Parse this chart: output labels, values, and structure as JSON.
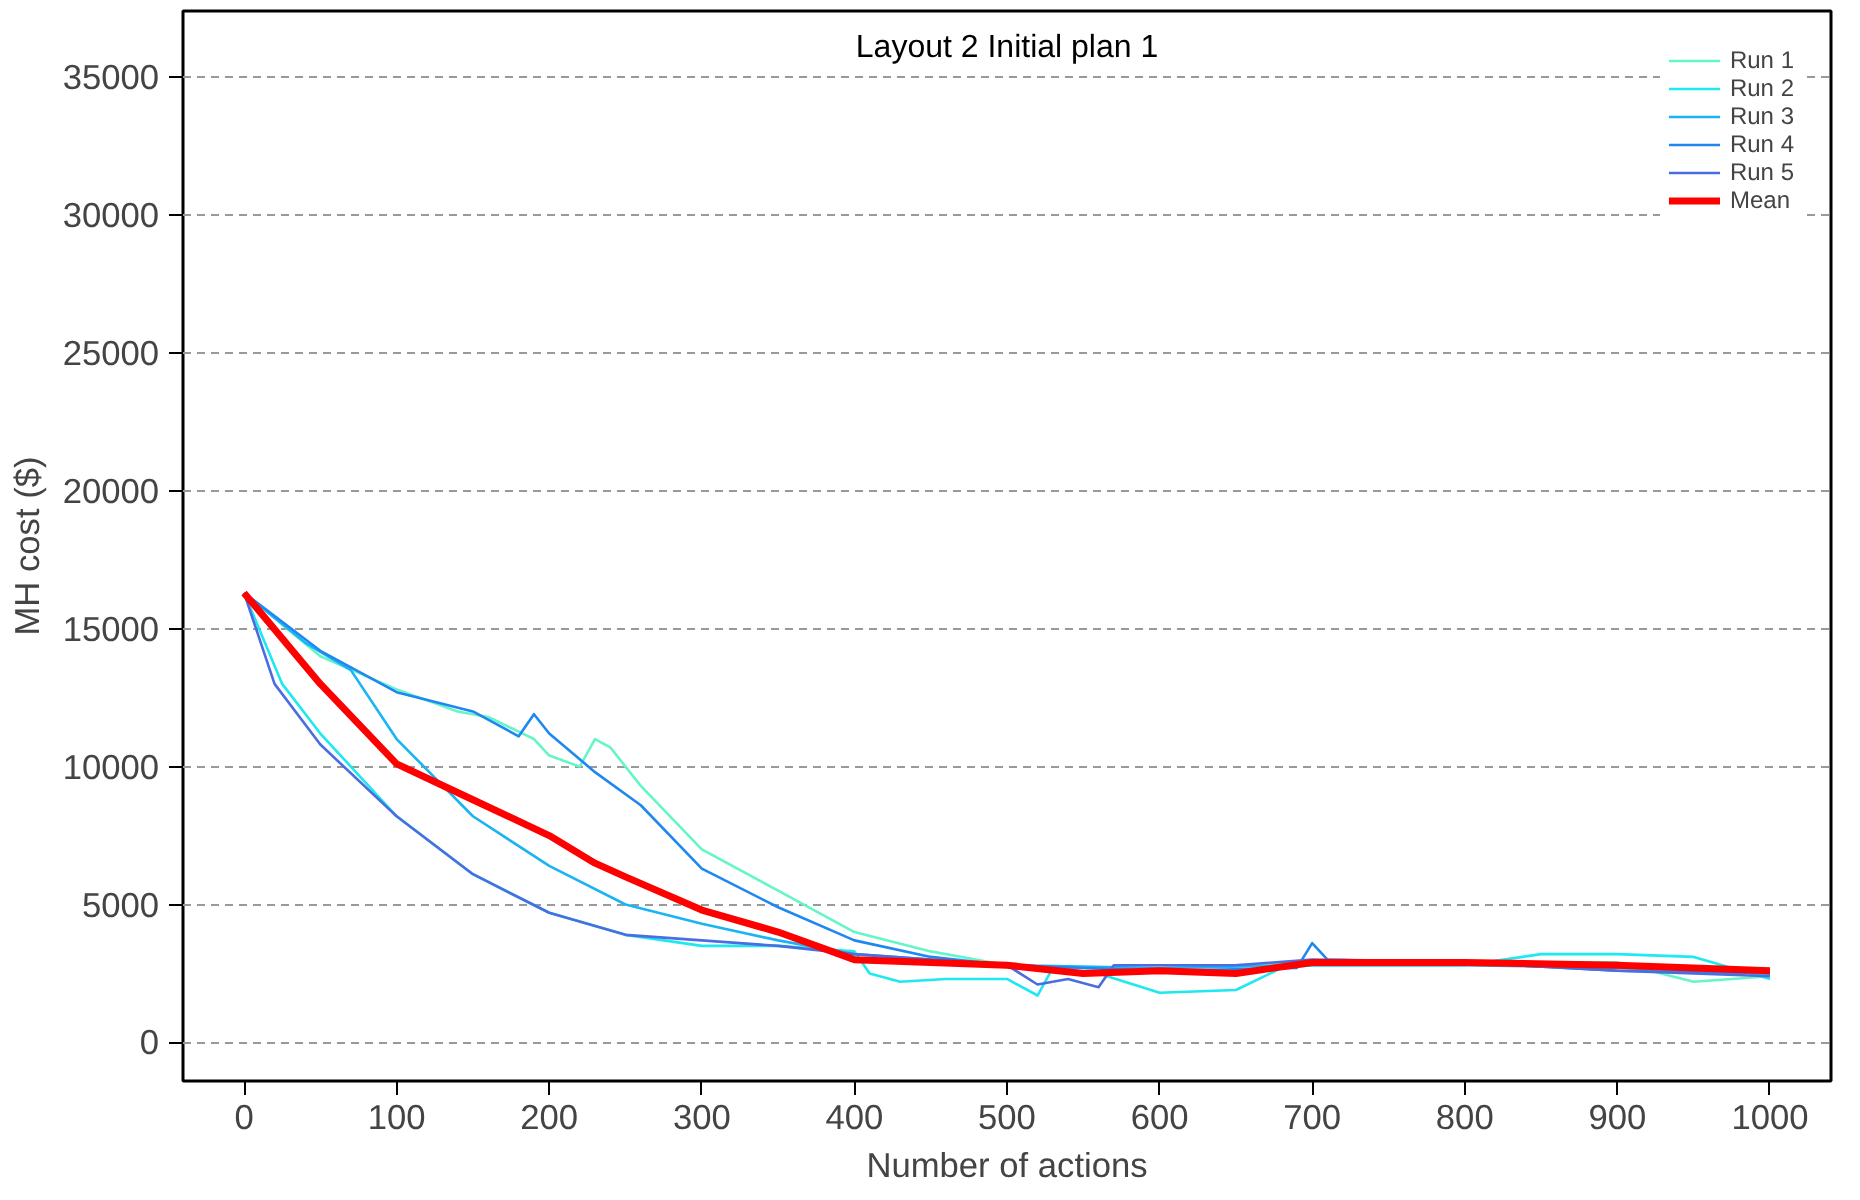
{
  "chart_data": {
    "type": "line",
    "title": "Layout 2 Initial plan 1",
    "xlabel": "Number of actions",
    "ylabel": "MH cost ($)",
    "xlim": [
      -40,
      1040
    ],
    "ylim": [
      -1400,
      37400
    ],
    "xticks": [
      0,
      100,
      200,
      300,
      400,
      500,
      600,
      700,
      800,
      900,
      1000
    ],
    "yticks": [
      0,
      5000,
      10000,
      15000,
      20000,
      25000,
      30000,
      35000
    ],
    "grid": "y",
    "legend": "top right",
    "line_style": "solid",
    "marker": "none",
    "series": [
      {
        "name": "Run 1",
        "color": "#66f5c8",
        "x": [
          0,
          50,
          100,
          140,
          160,
          190,
          200,
          220,
          230,
          240,
          260,
          300,
          350,
          400,
          450,
          500,
          550,
          600,
          700,
          800,
          900,
          950,
          1000
        ],
        "values": [
          16300,
          14000,
          12800,
          12000,
          11800,
          11000,
          10400,
          10000,
          11000,
          10700,
          9300,
          7000,
          5500,
          4000,
          3300,
          2800,
          2700,
          2700,
          2900,
          2900,
          2900,
          2200,
          2400
        ]
      },
      {
        "name": "Run 2",
        "color": "#1ee8f0",
        "x": [
          0,
          25,
          50,
          100,
          150,
          200,
          250,
          300,
          350,
          400,
          410,
          430,
          460,
          500,
          520,
          530,
          560,
          600,
          650,
          680,
          700,
          800,
          850,
          900,
          950,
          1000
        ],
        "values": [
          16300,
          13000,
          11200,
          8200,
          6100,
          4700,
          3900,
          3500,
          3500,
          3300,
          2500,
          2200,
          2300,
          2300,
          1700,
          2700,
          2500,
          1800,
          1900,
          2700,
          2800,
          2800,
          3200,
          3200,
          3100,
          2300
        ]
      },
      {
        "name": "Run 3",
        "color": "#1ab4f5",
        "x": [
          0,
          40,
          70,
          100,
          150,
          200,
          250,
          300,
          350,
          400,
          450,
          500,
          600,
          700,
          800,
          900,
          1000
        ],
        "values": [
          16300,
          14500,
          13500,
          11000,
          8200,
          6400,
          5000,
          4300,
          3700,
          3200,
          3000,
          2800,
          2700,
          2800,
          2800,
          2700,
          2500
        ]
      },
      {
        "name": "Run 4",
        "color": "#1e88f0",
        "x": [
          0,
          50,
          100,
          150,
          180,
          190,
          200,
          230,
          260,
          300,
          350,
          400,
          450,
          500,
          600,
          690,
          700,
          710,
          800,
          900,
          1000
        ],
        "values": [
          16300,
          14200,
          12700,
          12000,
          11100,
          11900,
          11200,
          9800,
          8600,
          6300,
          4900,
          3700,
          3100,
          2800,
          2600,
          2700,
          3600,
          3000,
          2900,
          2600,
          2500
        ]
      },
      {
        "name": "Run 5",
        "color": "#4a6ee0",
        "x": [
          0,
          20,
          50,
          100,
          150,
          200,
          250,
          300,
          350,
          400,
          450,
          500,
          520,
          540,
          560,
          570,
          650,
          700,
          800,
          900,
          1000
        ],
        "values": [
          16300,
          13000,
          10800,
          8200,
          6100,
          4700,
          3900,
          3700,
          3500,
          3200,
          3000,
          2800,
          2100,
          2300,
          2000,
          2800,
          2800,
          3000,
          2900,
          2600,
          2400
        ]
      },
      {
        "name": "Mean",
        "color": "#ff0000",
        "x": [
          0,
          50,
          100,
          150,
          200,
          230,
          250,
          300,
          350,
          400,
          450,
          500,
          550,
          600,
          650,
          700,
          800,
          900,
          1000
        ],
        "values": [
          16300,
          13000,
          10100,
          8800,
          7500,
          6500,
          6000,
          4800,
          4000,
          3000,
          2900,
          2800,
          2500,
          2600,
          2500,
          2900,
          2900,
          2800,
          2600
        ]
      }
    ]
  }
}
